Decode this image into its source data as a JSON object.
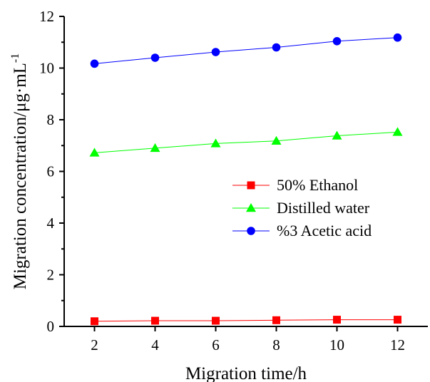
{
  "chart_data": {
    "type": "line",
    "title": "",
    "xlabel": "Migration time/h",
    "ylabel": "Migration concentration/μg·mL",
    "ylabel_superscript": "-1",
    "x": [
      2,
      4,
      6,
      8,
      10,
      12
    ],
    "xlim": [
      1,
      13
    ],
    "ylim": [
      0,
      12
    ],
    "xticks": [
      "2",
      "4",
      "6",
      "8",
      "10",
      "12"
    ],
    "yticks": [
      "0",
      "2",
      "4",
      "6",
      "8",
      "10",
      "12"
    ],
    "grid": false,
    "legend_position": "center-right",
    "series": [
      {
        "name": "50% Ethanol",
        "color": "#ff0000",
        "marker": "square",
        "values": [
          0.2,
          0.22,
          0.22,
          0.24,
          0.26,
          0.26
        ]
      },
      {
        "name": "Distilled water",
        "color": "#00ff00",
        "marker": "triangle",
        "values": [
          6.72,
          6.9,
          7.08,
          7.18,
          7.38,
          7.52
        ]
      },
      {
        "name": "%3 Acetic acid",
        "color": "#0000ff",
        "marker": "circle",
        "values": [
          10.17,
          10.4,
          10.62,
          10.8,
          11.04,
          11.18
        ]
      }
    ]
  }
}
